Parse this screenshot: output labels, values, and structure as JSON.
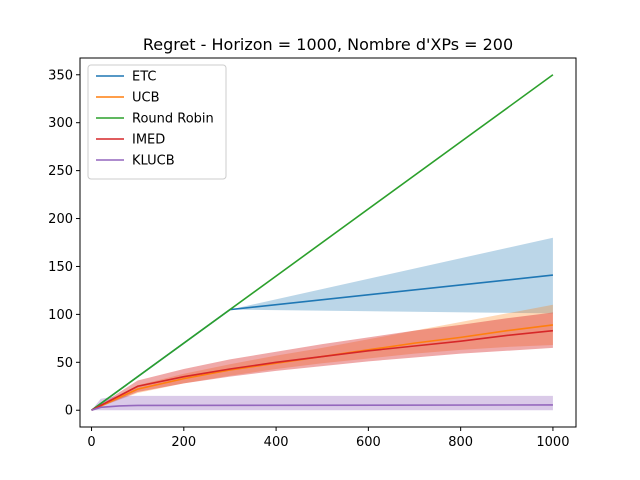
{
  "chart_data": {
    "type": "line",
    "title": "Regret - Horizon = 1000, Nombre d'XPs = 200",
    "xlabel": "",
    "ylabel": "",
    "xlim": [
      -25,
      1050
    ],
    "ylim": [
      -17.5,
      367.5
    ],
    "xticks": [
      0,
      200,
      400,
      600,
      800,
      1000
    ],
    "yticks": [
      0,
      50,
      100,
      150,
      200,
      250,
      300,
      350
    ],
    "legend_position": "top-left",
    "grid": false,
    "series": [
      {
        "name": "ETC",
        "color": "#1f77b4",
        "x": [
          0,
          300,
          1000
        ],
        "y": [
          0,
          105,
          141
        ],
        "band_lower": [
          0,
          105,
          101
        ],
        "band_upper": [
          0,
          105,
          180
        ],
        "band_opacity": 0.3
      },
      {
        "name": "UCB",
        "color": "#ff7f0e",
        "x": [
          0,
          100,
          200,
          300,
          400,
          500,
          600,
          700,
          800,
          900,
          1000
        ],
        "y": [
          0,
          22,
          33,
          42,
          49,
          56,
          63,
          70,
          76,
          83,
          89
        ],
        "band_lower": [
          0,
          18,
          28,
          36,
          43,
          49,
          54,
          59,
          63,
          66,
          68
        ],
        "band_upper": [
          0,
          26,
          38,
          48,
          57,
          65,
          74,
          83,
          92,
          101,
          110
        ],
        "band_opacity": 0.3
      },
      {
        "name": "Round Robin",
        "color": "#2ca02c",
        "x": [
          0,
          1000
        ],
        "y": [
          0,
          350
        ],
        "band_lower": [
          0,
          350
        ],
        "band_upper": [
          0,
          350
        ],
        "band_opacity": 0.3
      },
      {
        "name": "IMED",
        "color": "#d62728",
        "x": [
          0,
          100,
          200,
          300,
          400,
          500,
          600,
          700,
          800,
          900,
          1000
        ],
        "y": [
          0,
          25,
          35,
          43,
          50,
          56,
          62,
          67,
          72,
          78,
          83
        ],
        "band_lower": [
          0,
          19,
          28,
          35,
          41,
          46,
          51,
          55,
          59,
          62,
          65
        ],
        "band_upper": [
          0,
          31,
          43,
          53,
          61,
          69,
          76,
          83,
          89,
          96,
          102
        ],
        "band_opacity": 0.4
      },
      {
        "name": "KLUCB",
        "color": "#9467bd",
        "x": [
          0,
          20,
          60,
          100,
          1000
        ],
        "y": [
          0,
          3,
          4.5,
          5,
          5.5
        ],
        "band_lower": [
          0,
          0,
          0,
          0,
          0
        ],
        "band_upper": [
          0,
          12,
          15,
          15,
          15
        ],
        "band_opacity": 0.35
      }
    ]
  }
}
